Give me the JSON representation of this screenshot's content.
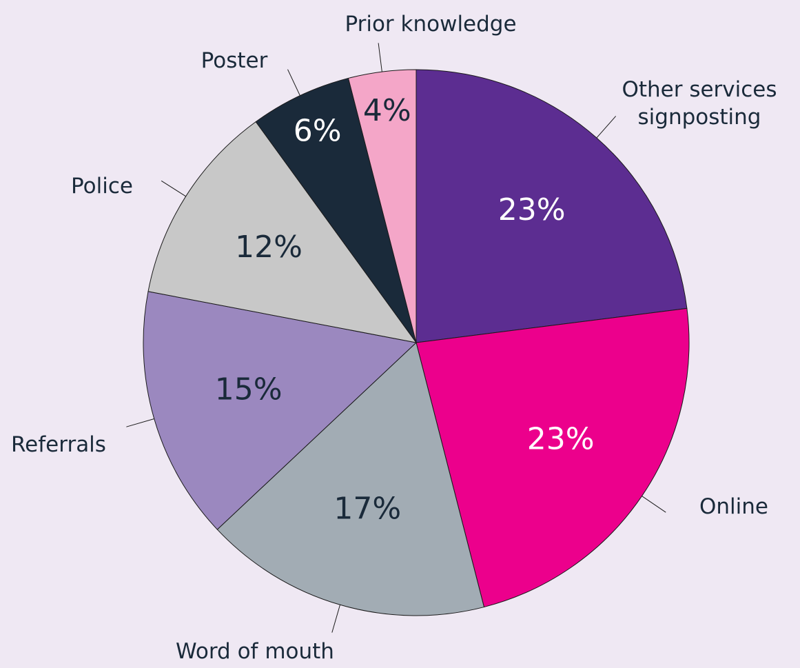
{
  "chart_data": {
    "type": "pie",
    "categories": [
      "Other services signposting",
      "Online",
      "Word of mouth",
      "Referrals",
      "Police",
      "Poster",
      "Prior knowledge"
    ],
    "values": [
      23,
      23,
      17,
      15,
      12,
      6,
      4
    ],
    "value_labels": [
      "23%",
      "23%",
      "17%",
      "15%",
      "12%",
      "6%",
      "4%"
    ],
    "colors": [
      "#5c2d91",
      "#ec008c",
      "#a2acb4",
      "#9b88bf",
      "#c8c8c8",
      "#1a2a3a",
      "#f4a6c8"
    ]
  }
}
